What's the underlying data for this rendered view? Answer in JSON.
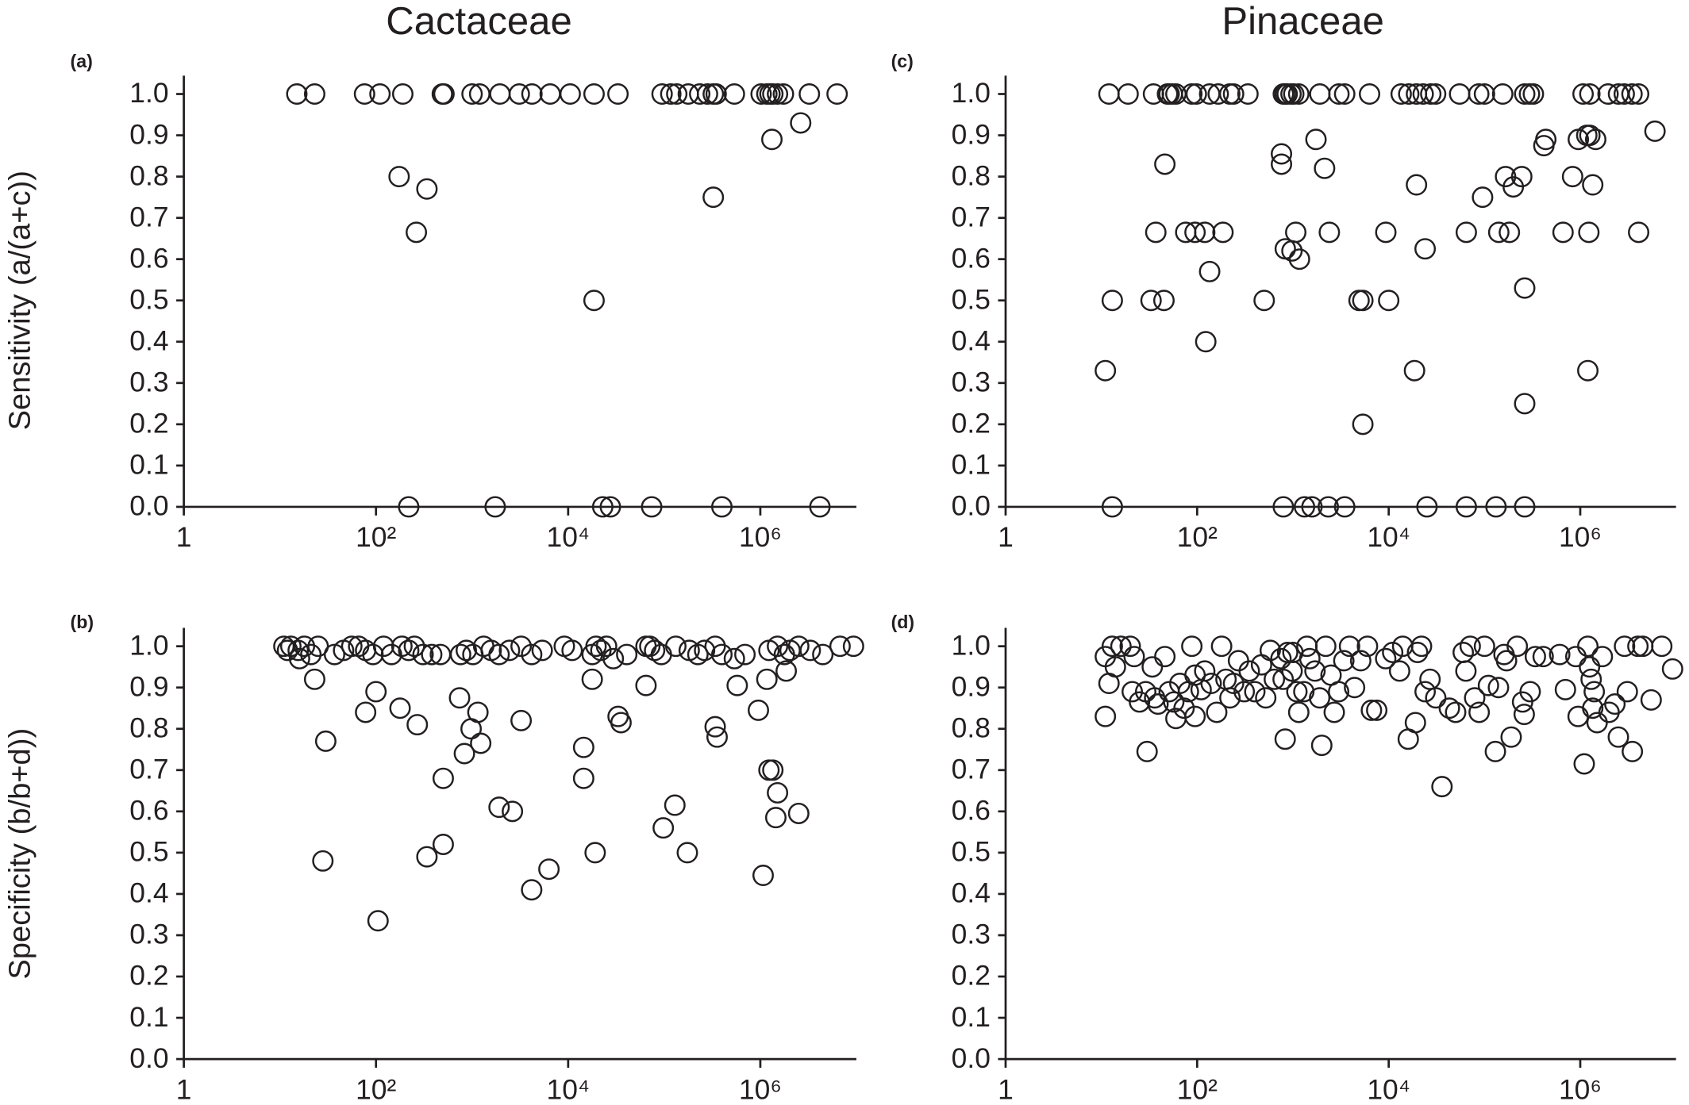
{
  "column_titles": [
    "Cactaceae",
    "Pinaceae"
  ],
  "row_labels": [
    "Sensitivity (a/(a+c))",
    "Specificity (b/b+d))"
  ],
  "chart_data": [
    {
      "type": "scatter",
      "label": "(a)",
      "xscale": "log",
      "marker": "open-circle",
      "color": "#231f20",
      "xlim": [
        1,
        10000000
      ],
      "ylim": [
        0,
        1
      ],
      "xticks": [
        1,
        {
          "value": 100,
          "label": "10²"
        },
        {
          "value": 10000,
          "label": "10⁴"
        },
        {
          "value": 1000000,
          "label": "10⁶"
        }
      ],
      "yticks": [
        {
          "value": 0,
          "label": "0.0"
        },
        0.1,
        0.2,
        0.3,
        0.4,
        0.5,
        0.6,
        0.7,
        0.8,
        0.9,
        {
          "value": 1,
          "label": "1.0"
        }
      ],
      "x": [
        15,
        23,
        76,
        110,
        190,
        490,
        510,
        1000,
        1200,
        1950,
        3100,
        4200,
        6500,
        10500,
        18600,
        33000,
        95000,
        117000,
        135000,
        178000,
        234000,
        282000,
        324000,
        347000,
        537000,
        1020000,
        1170000,
        1260000,
        1350000,
        1510000,
        1740000,
        3240000,
        6300000,
        174,
        339,
        263,
        1320000,
        2630000,
        324000,
        18600,
        219,
        1740,
        22900,
        27500,
        74000,
        398000,
        4170000
      ],
      "values": [
        1,
        1,
        1,
        1,
        1,
        1,
        1,
        1,
        1,
        1,
        1,
        1,
        1,
        1,
        1,
        1,
        1,
        1,
        1,
        1,
        1,
        1,
        1,
        1,
        1,
        1,
        1,
        1,
        1,
        1,
        1,
        1,
        1,
        0.8,
        0.77,
        0.665,
        0.89,
        0.93,
        0.75,
        0.5,
        0,
        0,
        0,
        0,
        0,
        0,
        0
      ]
    },
    {
      "type": "scatter",
      "label": "(b)",
      "xscale": "log",
      "marker": "open-circle",
      "color": "#231f20",
      "xlim": [
        1,
        10000000
      ],
      "ylim": [
        0,
        1
      ],
      "xticks": [
        1,
        {
          "value": 100,
          "label": "10²"
        },
        {
          "value": 10000,
          "label": "10⁴"
        },
        {
          "value": 1000000,
          "label": "10⁶"
        }
      ],
      "yticks": [
        {
          "value": 0,
          "label": "0.0"
        },
        0.1,
        0.2,
        0.3,
        0.4,
        0.5,
        0.6,
        0.7,
        0.8,
        0.9,
        {
          "value": 1,
          "label": "1.0"
        }
      ],
      "x": [
        11,
        12,
        13,
        15.5,
        18,
        21,
        25,
        37,
        46,
        56,
        66,
        78,
        93,
        120,
        145,
        186,
        219,
        251,
        309,
        380,
        468,
        759,
        871,
        1020,
        1320,
        1580,
        1910,
        2450,
        3240,
        4170,
        5370,
        9120,
        11000,
        17800,
        19500,
        21900,
        25100,
        29500,
        40700,
        64600,
        70800,
        79400,
        93300,
        132000,
        182000,
        224000,
        263000,
        339000,
        398000,
        537000,
        692000,
        1230000,
        1510000,
        1780000,
        2040000,
        2510000,
        3310000,
        4470000,
        6760000,
        9330000,
        16,
        23,
        30,
        28,
        78,
        100,
        105,
        178,
        269,
        339,
        501,
        501,
        741,
        832,
        977,
        1150,
        1230,
        1910,
        2630,
        3240,
        4170,
        6310,
        14500,
        14500,
        17800,
        19100,
        33100,
        35500,
        64600,
        97700,
        129000,
        174000,
        339000,
        355000,
        575000,
        955000,
        1070000,
        1170000,
        1230000,
        1350000,
        1510000,
        1450000,
        2510000,
        1860000
      ],
      "values": [
        1,
        0.99,
        1,
        0.99,
        1,
        0.98,
        1,
        0.98,
        0.99,
        1,
        1,
        0.99,
        0.98,
        1,
        0.98,
        1,
        0.99,
        1,
        0.98,
        0.98,
        0.98,
        0.98,
        0.99,
        0.98,
        1,
        0.99,
        0.98,
        0.99,
        1,
        0.98,
        0.99,
        1,
        0.99,
        0.98,
        1,
        0.99,
        1,
        0.97,
        0.98,
        1,
        1,
        0.99,
        0.98,
        1,
        0.99,
        0.98,
        0.99,
        1,
        0.98,
        0.97,
        0.98,
        0.99,
        1,
        0.98,
        0.99,
        1,
        0.99,
        0.98,
        1,
        1,
        0.97,
        0.92,
        0.77,
        0.48,
        0.84,
        0.89,
        0.335,
        0.85,
        0.81,
        0.49,
        0.68,
        0.52,
        0.875,
        0.74,
        0.8,
        0.84,
        0.765,
        0.61,
        0.6,
        0.82,
        0.41,
        0.46,
        0.68,
        0.755,
        0.92,
        0.5,
        0.83,
        0.815,
        0.905,
        0.56,
        0.615,
        0.5,
        0.805,
        0.78,
        0.905,
        0.845,
        0.445,
        0.92,
        0.7,
        0.7,
        0.645,
        0.585,
        0.595,
        0.94
      ]
    },
    {
      "type": "scatter",
      "label": "(c)",
      "xscale": "log",
      "marker": "open-circle",
      "color": "#231f20",
      "xlim": [
        1,
        10000000
      ],
      "ylim": [
        0,
        1
      ],
      "xticks": [
        1,
        {
          "value": 100,
          "label": "10²"
        },
        {
          "value": 10000,
          "label": "10⁴"
        },
        {
          "value": 1000000,
          "label": "10⁶"
        }
      ],
      "yticks": [
        {
          "value": 0,
          "label": "0.0"
        },
        0.1,
        0.2,
        0.3,
        0.4,
        0.5,
        0.6,
        0.7,
        0.8,
        0.9,
        {
          "value": 1,
          "label": "1.0"
        }
      ],
      "x": [
        12,
        19,
        35,
        49,
        51,
        55,
        60,
        88,
        98,
        135,
        166,
        219,
        240,
        339,
        794,
        832,
        871,
        955,
        1020,
        1150,
        1910,
        3020,
        3470,
        6310,
        13500,
        16200,
        19500,
        22900,
        27500,
        30900,
        55000,
        87100,
        100000,
        155000,
        263000,
        295000,
        324000,
        1070000,
        1260000,
        1950000,
        2510000,
        2880000,
        3470000,
        4070000,
        11,
        13,
        13,
        33,
        37,
        46,
        45,
        76,
        95,
        120,
        123,
        135,
        186,
        501,
        759,
        759,
        832,
        977,
        1170,
        1070,
        1740,
        2140,
        2400,
        794,
        1320,
        1580,
        2340,
        3470,
        4900,
        5370,
        5370,
        10000,
        9330,
        18600,
        19500,
        24000,
        25100,
        64600,
        64600,
        95500,
        132000,
        141000,
        166000,
        182000,
        200000,
        245000,
        263000,
        263000,
        263000,
        417000,
        437000,
        661000,
        832000,
        955000,
        1170000,
        1260000,
        1350000,
        1230000,
        1200000,
        1450000,
        4070000,
        6030000
      ],
      "values": [
        1,
        1,
        1,
        1,
        1,
        1,
        1,
        1,
        1,
        1,
        1,
        1,
        1,
        1,
        1,
        1,
        1,
        1,
        1,
        1,
        1,
        1,
        1,
        1,
        1,
        1,
        1,
        1,
        1,
        1,
        1,
        1,
        1,
        1,
        1,
        1,
        1,
        1,
        1,
        1,
        1,
        1,
        1,
        1,
        0.33,
        0.5,
        0,
        0.5,
        0.665,
        0.83,
        0.5,
        0.665,
        0.665,
        0.665,
        0.4,
        0.57,
        0.665,
        0.5,
        0.855,
        0.83,
        0.625,
        0.62,
        0.6,
        0.665,
        0.89,
        0.82,
        0.665,
        0,
        0,
        0,
        0,
        0,
        0.5,
        0.5,
        0.2,
        0.5,
        0.665,
        0.33,
        0.78,
        0.625,
        0,
        0.665,
        0,
        0.75,
        0,
        0.665,
        0.8,
        0.665,
        0.775,
        0.8,
        0.25,
        0,
        0.53,
        0.875,
        0.89,
        0.665,
        0.8,
        0.89,
        0.9,
        0.9,
        0.78,
        0.665,
        0.33,
        0.89,
        0.665,
        0.91
      ]
    },
    {
      "type": "scatter",
      "label": "(d)",
      "xscale": "log",
      "marker": "open-circle",
      "color": "#231f20",
      "xlim": [
        1,
        10000000
      ],
      "ylim": [
        0,
        1
      ],
      "xticks": [
        1,
        {
          "value": 100,
          "label": "10²"
        },
        {
          "value": 10000,
          "label": "10⁴"
        },
        {
          "value": 1000000,
          "label": "10⁶"
        }
      ],
      "yticks": [
        {
          "value": 0,
          "label": "0.0"
        },
        0.1,
        0.2,
        0.3,
        0.4,
        0.5,
        0.6,
        0.7,
        0.8,
        0.9,
        {
          "value": 1,
          "label": "1.0"
        }
      ],
      "x": [
        11,
        11,
        12,
        13,
        14,
        16,
        20,
        21,
        22,
        25,
        29,
        30,
        34,
        36,
        39,
        46,
        51,
        57,
        60,
        66,
        73,
        81,
        88,
        95,
        95,
        110,
        120,
        140,
        160,
        180,
        200,
        220,
        240,
        270,
        310,
        350,
        400,
        470,
        520,
        580,
        640,
        750,
        790,
        830,
        880,
        980,
        1000,
        1100,
        1150,
        1300,
        1400,
        1500,
        1700,
        1900,
        2000,
        2200,
        2500,
        2700,
        3000,
        3400,
        3900,
        4400,
        5100,
        6000,
        6600,
        7500,
        9300,
        11000,
        13000,
        14000,
        16000,
        19000,
        20000,
        22000,
        24000,
        27000,
        31000,
        36000,
        43000,
        50000,
        60000,
        64000,
        71000,
        79000,
        88000,
        100000,
        110000,
        130000,
        140000,
        160000,
        170000,
        190000,
        220000,
        250000,
        260000,
        300000,
        340000,
        410000,
        610000,
        700000,
        900000,
        950000,
        1100000,
        1200000,
        1250000,
        1300000,
        1350000,
        1400000,
        1500000,
        1700000,
        2000000,
        2300000,
        2500000,
        2900000,
        3100000,
        3500000,
        4000000,
        4500000,
        5500000,
        7100000,
        9200000
      ],
      "values": [
        0.975,
        0.83,
        0.91,
        1,
        0.95,
        1,
        1,
        0.89,
        0.975,
        0.865,
        0.89,
        0.745,
        0.95,
        0.875,
        0.86,
        0.975,
        0.89,
        0.865,
        0.825,
        0.91,
        0.85,
        0.89,
        1,
        0.93,
        0.83,
        0.895,
        0.94,
        0.91,
        0.84,
        1,
        0.92,
        0.875,
        0.91,
        0.965,
        0.89,
        0.94,
        0.89,
        0.955,
        0.875,
        0.99,
        0.92,
        0.97,
        0.92,
        0.775,
        0.985,
        0.94,
        0.985,
        0.89,
        0.84,
        0.89,
        1,
        0.97,
        0.94,
        0.875,
        0.76,
        1,
        0.93,
        0.84,
        0.89,
        0.965,
        1,
        0.9,
        0.965,
        1,
        0.845,
        0.845,
        0.97,
        0.985,
        0.94,
        1,
        0.775,
        0.815,
        0.985,
        1,
        0.89,
        0.92,
        0.875,
        0.66,
        0.85,
        0.84,
        0.985,
        0.94,
        1,
        0.875,
        0.84,
        1,
        0.905,
        0.745,
        0.9,
        0.98,
        0.965,
        0.78,
        1,
        0.865,
        0.835,
        0.89,
        0.975,
        0.975,
        0.98,
        0.895,
        0.975,
        0.83,
        0.715,
        1,
        0.95,
        0.92,
        0.85,
        0.89,
        0.815,
        0.975,
        0.84,
        0.86,
        0.78,
        1,
        0.89,
        0.745,
        1,
        1,
        0.87,
        1,
        0.945
      ]
    }
  ]
}
